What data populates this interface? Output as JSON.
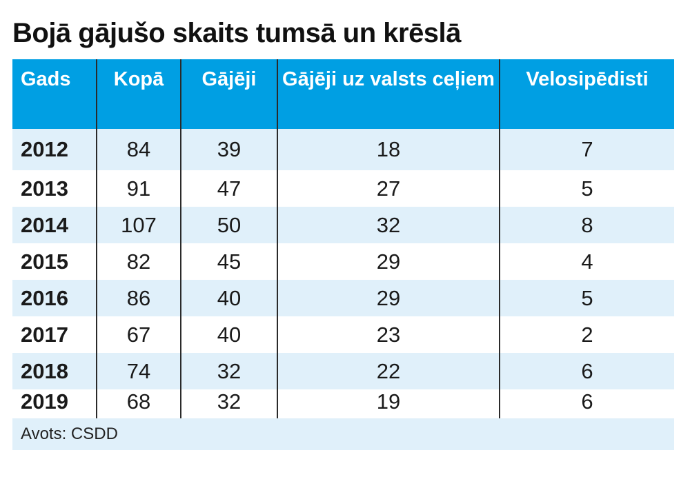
{
  "title": "Bojā gājušo skaits tumsā un krēslā",
  "columns": [
    "Gads",
    "Kopā",
    "Gājēji",
    "Gājēji uz valsts ceļiem",
    "Velosipēdisti"
  ],
  "rows": [
    [
      "2012",
      "84",
      "39",
      "18",
      "7"
    ],
    [
      "2013",
      "91",
      "47",
      "27",
      "5"
    ],
    [
      "2014",
      "107",
      "50",
      "32",
      "8"
    ],
    [
      "2015",
      "82",
      "45",
      "29",
      "4"
    ],
    [
      "2016",
      "86",
      "40",
      "29",
      "5"
    ],
    [
      "2017",
      "67",
      "40",
      "23",
      "2"
    ],
    [
      "2018",
      "74",
      "32",
      "22",
      "6"
    ],
    [
      "2019",
      "68",
      "32",
      "19",
      "6"
    ]
  ],
  "source": "Avots: CSDD",
  "colors": {
    "header_bg": "#009fe3",
    "stripe_bg": "#e0f0fa"
  }
}
